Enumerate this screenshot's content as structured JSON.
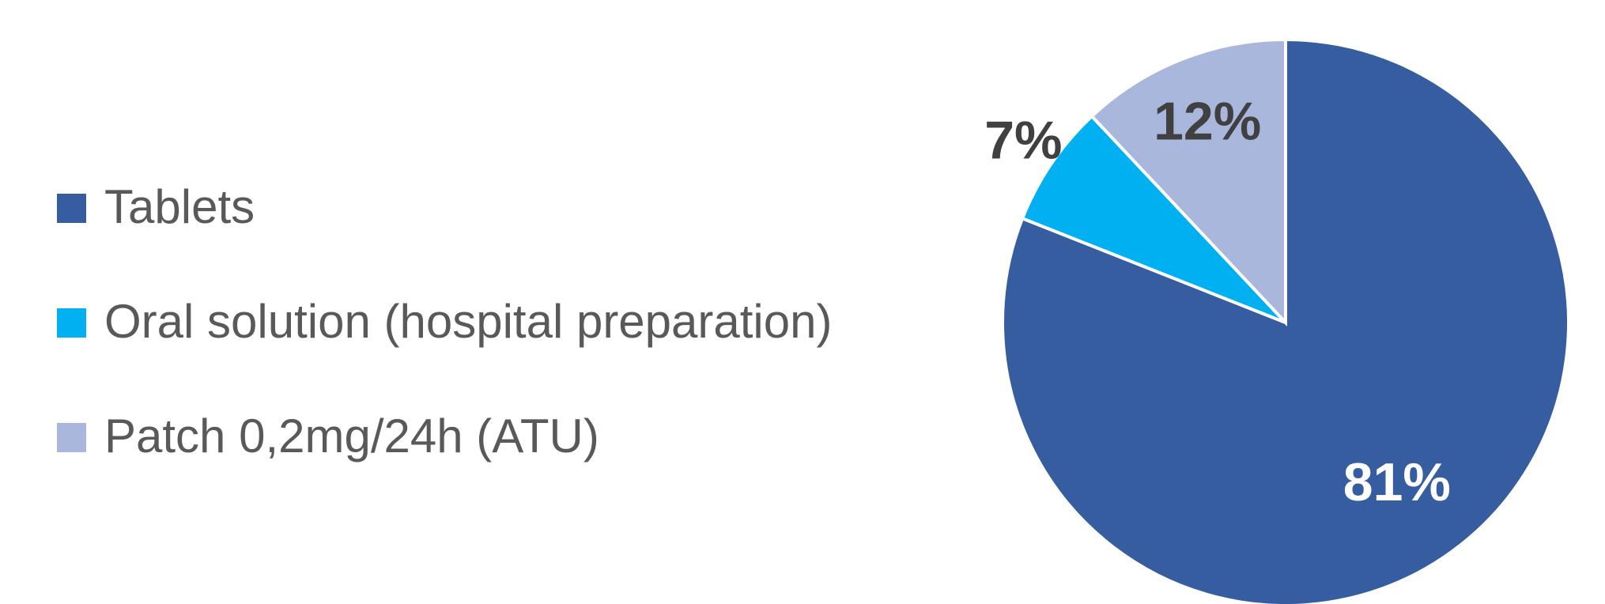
{
  "chart_data": {
    "type": "pie",
    "categories": [
      "Tablets",
      "Oral solution (hospital preparation)",
      "Patch 0,2mg/24h (ATU)"
    ],
    "values": [
      81,
      7,
      12
    ],
    "value_labels": [
      "81%",
      "7%",
      "12%"
    ],
    "colors": [
      "#375da1",
      "#00b0f0",
      "#a9b7dc"
    ],
    "legend": "left"
  }
}
